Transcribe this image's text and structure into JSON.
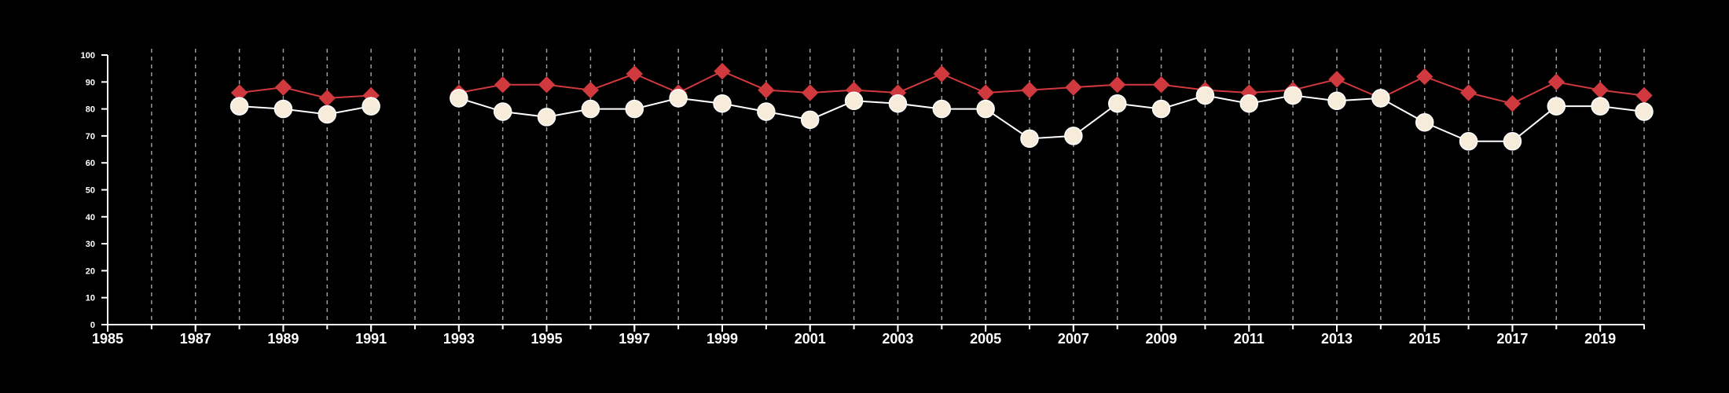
{
  "chart_data": {
    "type": "line",
    "title": "",
    "xlabel": "",
    "ylabel": "",
    "xlim": [
      1985,
      2020
    ],
    "ylim": [
      0,
      100
    ],
    "x_ticks": [
      1985,
      1987,
      1989,
      1991,
      1993,
      1995,
      1997,
      1999,
      2001,
      2003,
      2005,
      2007,
      2009,
      2011,
      2013,
      2015,
      2017,
      2019
    ],
    "y_ticks": [
      0,
      10,
      20,
      30,
      40,
      50,
      60,
      70,
      80,
      90,
      100
    ],
    "vertical_grid": "dashed, every year",
    "x": [
      1985,
      1986,
      1987,
      1988,
      1989,
      1990,
      1991,
      1992,
      1993,
      1994,
      1995,
      1996,
      1997,
      1998,
      1999,
      2000,
      2001,
      2002,
      2003,
      2004,
      2005,
      2006,
      2007,
      2008,
      2009,
      2010,
      2011,
      2012,
      2013,
      2014,
      2015,
      2016,
      2017,
      2018,
      2019,
      2020
    ],
    "series": [
      {
        "marker": "diamond",
        "color": "#d0393e",
        "values": [
          null,
          null,
          null,
          86,
          88,
          84,
          85,
          null,
          86,
          89,
          89,
          87,
          93,
          86,
          94,
          87,
          86,
          87,
          86,
          93,
          86,
          87,
          88,
          89,
          89,
          87,
          86,
          87,
          91,
          84,
          92,
          86,
          82,
          90,
          87,
          85
        ]
      },
      {
        "marker": "circle",
        "color": "#ffffff",
        "fill": "#f7ecd9",
        "values": [
          null,
          null,
          null,
          81,
          80,
          78,
          81,
          null,
          84,
          79,
          77,
          80,
          80,
          84,
          82,
          79,
          76,
          83,
          82,
          80,
          80,
          69,
          70,
          82,
          80,
          85,
          82,
          85,
          83,
          84,
          75,
          68,
          68,
          81,
          81,
          79
        ]
      }
    ]
  }
}
